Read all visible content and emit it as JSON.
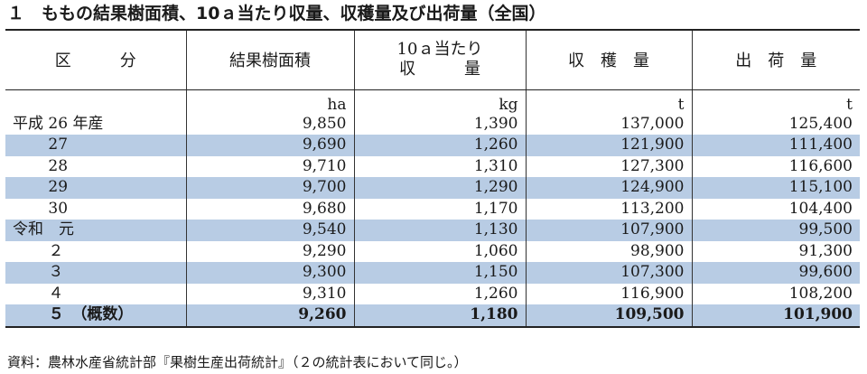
{
  "title": "１　ももの結果樹面積、10ａ当たり収量、収穫量及び出荷量（全国）",
  "headers": {
    "category": "区　　　分",
    "area": "結果樹面積",
    "yield_line1": "10ａ当たり",
    "yield_line2": "収　　　量",
    "harvest": "収　穫　量",
    "shipment": "出　荷　量"
  },
  "units": {
    "area": "ha",
    "yield": "kg",
    "harvest": "t",
    "shipment": "t"
  },
  "rows": [
    {
      "label": "平成 26 年産",
      "area": "9,850",
      "yield": "1,390",
      "harvest": "137,000",
      "shipment": "125,400"
    },
    {
      "label": "　　 27",
      "area": "9,690",
      "yield": "1,260",
      "harvest": "121,900",
      "shipment": "111,400"
    },
    {
      "label": "　　 28",
      "area": "9,710",
      "yield": "1,310",
      "harvest": "127,300",
      "shipment": "116,600"
    },
    {
      "label": "　　 29",
      "area": "9,700",
      "yield": "1,290",
      "harvest": "124,900",
      "shipment": "115,100"
    },
    {
      "label": "　　 30",
      "area": "9,680",
      "yield": "1,170",
      "harvest": "113,200",
      "shipment": "104,400"
    },
    {
      "label": "令和　元",
      "area": "9,540",
      "yield": "1,130",
      "harvest": "107,900",
      "shipment": "99,500"
    },
    {
      "label": "　　 ２",
      "area": "9,290",
      "yield": "1,060",
      "harvest": "98,900",
      "shipment": "91,300"
    },
    {
      "label": "　　 ３",
      "area": "9,300",
      "yield": "1,150",
      "harvest": "107,300",
      "shipment": "99,600"
    },
    {
      "label": "　　 ４",
      "area": "9,310",
      "yield": "1,260",
      "harvest": "116,900",
      "shipment": "108,200"
    },
    {
      "label": "　　 ５　（概数）",
      "area": "9,260",
      "yield": "1,180",
      "harvest": "109,500",
      "shipment": "101,900"
    }
  ],
  "source": "資料：農林水産省統計部『果樹生産出荷統計』（２の統計表において同じ。）",
  "colors": {
    "row_shade": "#b8cce4",
    "rule": "#222222"
  }
}
